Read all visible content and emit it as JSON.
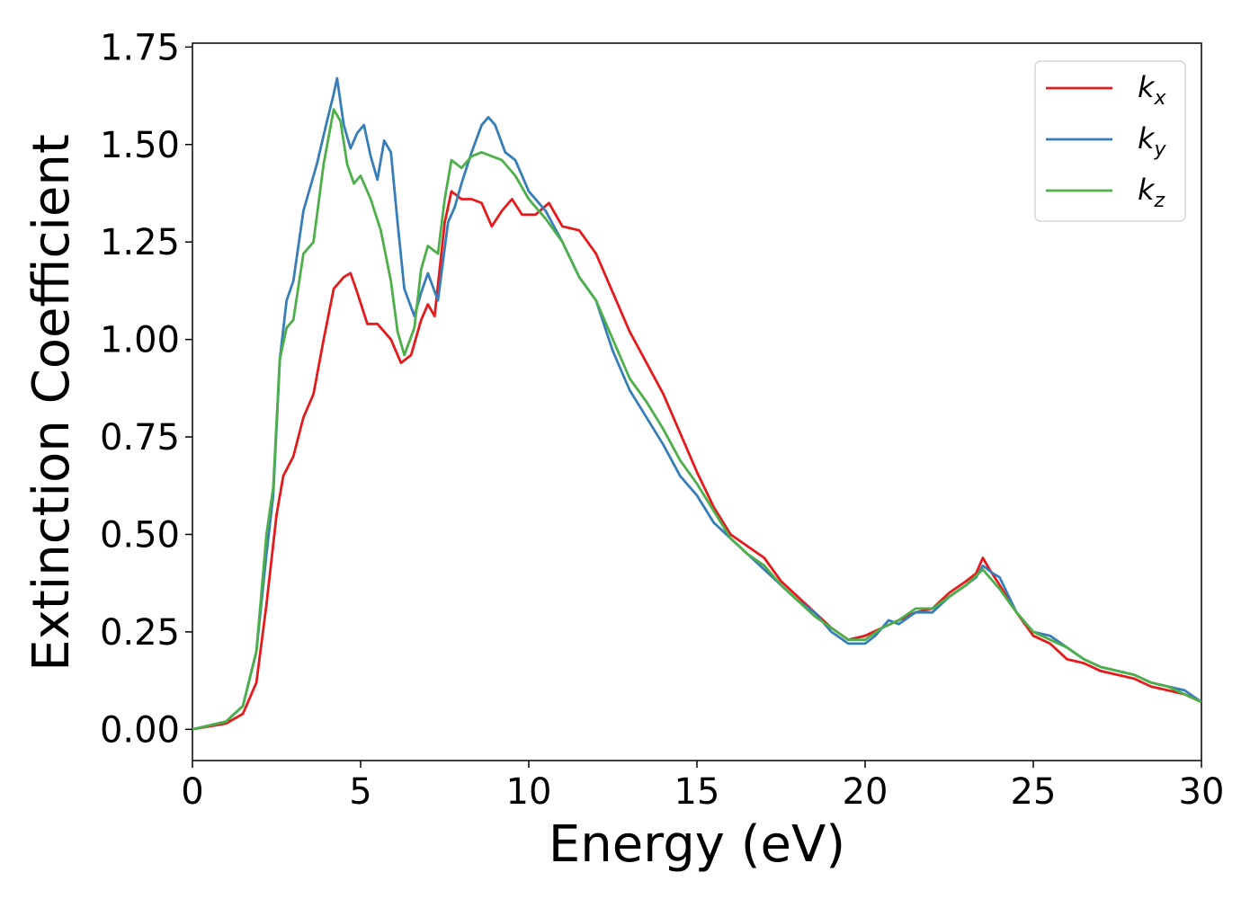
{
  "chart_data": {
    "type": "line",
    "xlabel": "Energy (eV)",
    "ylabel": "Extinction Coefficient",
    "xlim": [
      0,
      30
    ],
    "ylim": [
      -0.08,
      1.76
    ],
    "xticks": [
      0,
      5,
      10,
      15,
      20,
      25,
      30
    ],
    "xtick_labels": [
      "0",
      "5",
      "10",
      "15",
      "20",
      "25",
      "30"
    ],
    "yticks": [
      0.0,
      0.25,
      0.5,
      0.75,
      1.0,
      1.25,
      1.5,
      1.75
    ],
    "ytick_labels": [
      "0.00",
      "0.25",
      "0.50",
      "0.75",
      "1.00",
      "1.25",
      "1.50",
      "1.75"
    ],
    "grid": false,
    "legend": {
      "placement": "top-right"
    },
    "series": [
      {
        "name": "k_x",
        "base": "k",
        "sub": "x",
        "color": "#e41a1c",
        "points": [
          [
            0,
            0.0
          ],
          [
            1.0,
            0.015
          ],
          [
            1.5,
            0.04
          ],
          [
            1.9,
            0.12
          ],
          [
            2.2,
            0.32
          ],
          [
            2.5,
            0.55
          ],
          [
            2.7,
            0.65
          ],
          [
            3.0,
            0.7
          ],
          [
            3.3,
            0.8
          ],
          [
            3.6,
            0.86
          ],
          [
            3.9,
            1.0
          ],
          [
            4.2,
            1.13
          ],
          [
            4.5,
            1.16
          ],
          [
            4.7,
            1.17
          ],
          [
            4.9,
            1.12
          ],
          [
            5.2,
            1.04
          ],
          [
            5.5,
            1.04
          ],
          [
            5.9,
            1.0
          ],
          [
            6.2,
            0.94
          ],
          [
            6.5,
            0.96
          ],
          [
            6.8,
            1.05
          ],
          [
            7.0,
            1.09
          ],
          [
            7.2,
            1.06
          ],
          [
            7.5,
            1.3
          ],
          [
            7.7,
            1.38
          ],
          [
            8.0,
            1.36
          ],
          [
            8.3,
            1.36
          ],
          [
            8.6,
            1.35
          ],
          [
            8.9,
            1.29
          ],
          [
            9.2,
            1.33
          ],
          [
            9.5,
            1.36
          ],
          [
            9.8,
            1.32
          ],
          [
            10.2,
            1.32
          ],
          [
            10.6,
            1.35
          ],
          [
            11.0,
            1.29
          ],
          [
            11.5,
            1.28
          ],
          [
            12.0,
            1.22
          ],
          [
            12.5,
            1.12
          ],
          [
            13.0,
            1.02
          ],
          [
            13.5,
            0.94
          ],
          [
            14.0,
            0.86
          ],
          [
            14.5,
            0.76
          ],
          [
            15.0,
            0.66
          ],
          [
            15.5,
            0.57
          ],
          [
            16.0,
            0.5
          ],
          [
            16.5,
            0.47
          ],
          [
            17.0,
            0.44
          ],
          [
            17.5,
            0.38
          ],
          [
            18.0,
            0.34
          ],
          [
            18.5,
            0.3
          ],
          [
            19.0,
            0.26
          ],
          [
            19.5,
            0.23
          ],
          [
            20.0,
            0.24
          ],
          [
            20.5,
            0.26
          ],
          [
            21.0,
            0.28
          ],
          [
            21.5,
            0.3
          ],
          [
            22.0,
            0.31
          ],
          [
            22.5,
            0.35
          ],
          [
            23.0,
            0.38
          ],
          [
            23.3,
            0.4
          ],
          [
            23.5,
            0.44
          ],
          [
            23.7,
            0.41
          ],
          [
            24.0,
            0.37
          ],
          [
            24.5,
            0.3
          ],
          [
            25.0,
            0.24
          ],
          [
            25.5,
            0.22
          ],
          [
            26.0,
            0.18
          ],
          [
            26.5,
            0.17
          ],
          [
            27.0,
            0.15
          ],
          [
            27.5,
            0.14
          ],
          [
            28.0,
            0.13
          ],
          [
            28.5,
            0.11
          ],
          [
            29.0,
            0.1
          ],
          [
            29.5,
            0.09
          ],
          [
            30.0,
            0.07
          ]
        ]
      },
      {
        "name": "k_y",
        "base": "k",
        "sub": "y",
        "color": "#377eb8",
        "points": [
          [
            0,
            0.0
          ],
          [
            1.0,
            0.02
          ],
          [
            1.5,
            0.06
          ],
          [
            1.9,
            0.2
          ],
          [
            2.2,
            0.45
          ],
          [
            2.4,
            0.6
          ],
          [
            2.6,
            0.95
          ],
          [
            2.8,
            1.1
          ],
          [
            3.0,
            1.15
          ],
          [
            3.3,
            1.33
          ],
          [
            3.7,
            1.45
          ],
          [
            4.0,
            1.56
          ],
          [
            4.2,
            1.63
          ],
          [
            4.3,
            1.67
          ],
          [
            4.5,
            1.55
          ],
          [
            4.7,
            1.49
          ],
          [
            4.9,
            1.53
          ],
          [
            5.1,
            1.55
          ],
          [
            5.3,
            1.47
          ],
          [
            5.5,
            1.41
          ],
          [
            5.7,
            1.51
          ],
          [
            5.9,
            1.48
          ],
          [
            6.1,
            1.3
          ],
          [
            6.3,
            1.13
          ],
          [
            6.6,
            1.06
          ],
          [
            6.8,
            1.12
          ],
          [
            7.0,
            1.17
          ],
          [
            7.3,
            1.1
          ],
          [
            7.6,
            1.3
          ],
          [
            7.8,
            1.34
          ],
          [
            8.0,
            1.4
          ],
          [
            8.3,
            1.48
          ],
          [
            8.6,
            1.55
          ],
          [
            8.8,
            1.57
          ],
          [
            9.0,
            1.55
          ],
          [
            9.3,
            1.48
          ],
          [
            9.6,
            1.46
          ],
          [
            10.0,
            1.38
          ],
          [
            10.5,
            1.33
          ],
          [
            11.0,
            1.25
          ],
          [
            11.5,
            1.16
          ],
          [
            12.0,
            1.1
          ],
          [
            12.5,
            0.97
          ],
          [
            13.0,
            0.87
          ],
          [
            13.5,
            0.8
          ],
          [
            14.0,
            0.73
          ],
          [
            14.5,
            0.65
          ],
          [
            15.0,
            0.6
          ],
          [
            15.5,
            0.53
          ],
          [
            16.0,
            0.49
          ],
          [
            16.5,
            0.45
          ],
          [
            17.0,
            0.41
          ],
          [
            17.5,
            0.37
          ],
          [
            18.0,
            0.33
          ],
          [
            18.5,
            0.3
          ],
          [
            19.0,
            0.25
          ],
          [
            19.5,
            0.22
          ],
          [
            20.0,
            0.22
          ],
          [
            20.3,
            0.24
          ],
          [
            20.7,
            0.28
          ],
          [
            21.0,
            0.27
          ],
          [
            21.5,
            0.3
          ],
          [
            22.0,
            0.3
          ],
          [
            22.5,
            0.34
          ],
          [
            23.0,
            0.37
          ],
          [
            23.3,
            0.39
          ],
          [
            23.5,
            0.42
          ],
          [
            23.8,
            0.4
          ],
          [
            24.0,
            0.39
          ],
          [
            24.5,
            0.3
          ],
          [
            25.0,
            0.25
          ],
          [
            25.5,
            0.24
          ],
          [
            26.0,
            0.21
          ],
          [
            26.5,
            0.18
          ],
          [
            27.0,
            0.16
          ],
          [
            27.5,
            0.15
          ],
          [
            28.0,
            0.14
          ],
          [
            28.5,
            0.12
          ],
          [
            29.0,
            0.11
          ],
          [
            29.5,
            0.1
          ],
          [
            30.0,
            0.07
          ]
        ]
      },
      {
        "name": "k_z",
        "base": "k",
        "sub": "z",
        "color": "#4daf4a",
        "points": [
          [
            0,
            0.0
          ],
          [
            1.0,
            0.02
          ],
          [
            1.5,
            0.06
          ],
          [
            1.9,
            0.2
          ],
          [
            2.2,
            0.5
          ],
          [
            2.4,
            0.62
          ],
          [
            2.6,
            0.95
          ],
          [
            2.8,
            1.03
          ],
          [
            3.0,
            1.05
          ],
          [
            3.3,
            1.22
          ],
          [
            3.6,
            1.25
          ],
          [
            3.9,
            1.45
          ],
          [
            4.2,
            1.59
          ],
          [
            4.4,
            1.56
          ],
          [
            4.6,
            1.45
          ],
          [
            4.8,
            1.4
          ],
          [
            5.0,
            1.42
          ],
          [
            5.3,
            1.36
          ],
          [
            5.6,
            1.28
          ],
          [
            5.9,
            1.15
          ],
          [
            6.1,
            1.02
          ],
          [
            6.3,
            0.96
          ],
          [
            6.6,
            1.03
          ],
          [
            6.8,
            1.18
          ],
          [
            7.0,
            1.24
          ],
          [
            7.3,
            1.22
          ],
          [
            7.5,
            1.36
          ],
          [
            7.7,
            1.46
          ],
          [
            8.0,
            1.44
          ],
          [
            8.3,
            1.47
          ],
          [
            8.6,
            1.48
          ],
          [
            8.9,
            1.47
          ],
          [
            9.2,
            1.46
          ],
          [
            9.6,
            1.42
          ],
          [
            10.0,
            1.36
          ],
          [
            10.5,
            1.31
          ],
          [
            11.0,
            1.25
          ],
          [
            11.5,
            1.16
          ],
          [
            12.0,
            1.1
          ],
          [
            12.5,
            1.0
          ],
          [
            13.0,
            0.9
          ],
          [
            13.5,
            0.84
          ],
          [
            14.0,
            0.77
          ],
          [
            14.5,
            0.69
          ],
          [
            15.0,
            0.63
          ],
          [
            15.5,
            0.56
          ],
          [
            16.0,
            0.49
          ],
          [
            16.5,
            0.45
          ],
          [
            17.0,
            0.42
          ],
          [
            17.5,
            0.37
          ],
          [
            18.0,
            0.33
          ],
          [
            18.5,
            0.29
          ],
          [
            19.0,
            0.26
          ],
          [
            19.5,
            0.23
          ],
          [
            20.0,
            0.23
          ],
          [
            20.5,
            0.26
          ],
          [
            21.0,
            0.28
          ],
          [
            21.5,
            0.31
          ],
          [
            22.0,
            0.31
          ],
          [
            22.5,
            0.34
          ],
          [
            23.0,
            0.37
          ],
          [
            23.5,
            0.41
          ],
          [
            24.0,
            0.36
          ],
          [
            24.5,
            0.3
          ],
          [
            25.0,
            0.25
          ],
          [
            25.5,
            0.23
          ],
          [
            26.0,
            0.21
          ],
          [
            26.5,
            0.18
          ],
          [
            27.0,
            0.16
          ],
          [
            27.5,
            0.15
          ],
          [
            28.0,
            0.14
          ],
          [
            28.5,
            0.12
          ],
          [
            29.0,
            0.11
          ],
          [
            29.5,
            0.09
          ],
          [
            30.0,
            0.07
          ]
        ]
      }
    ]
  }
}
